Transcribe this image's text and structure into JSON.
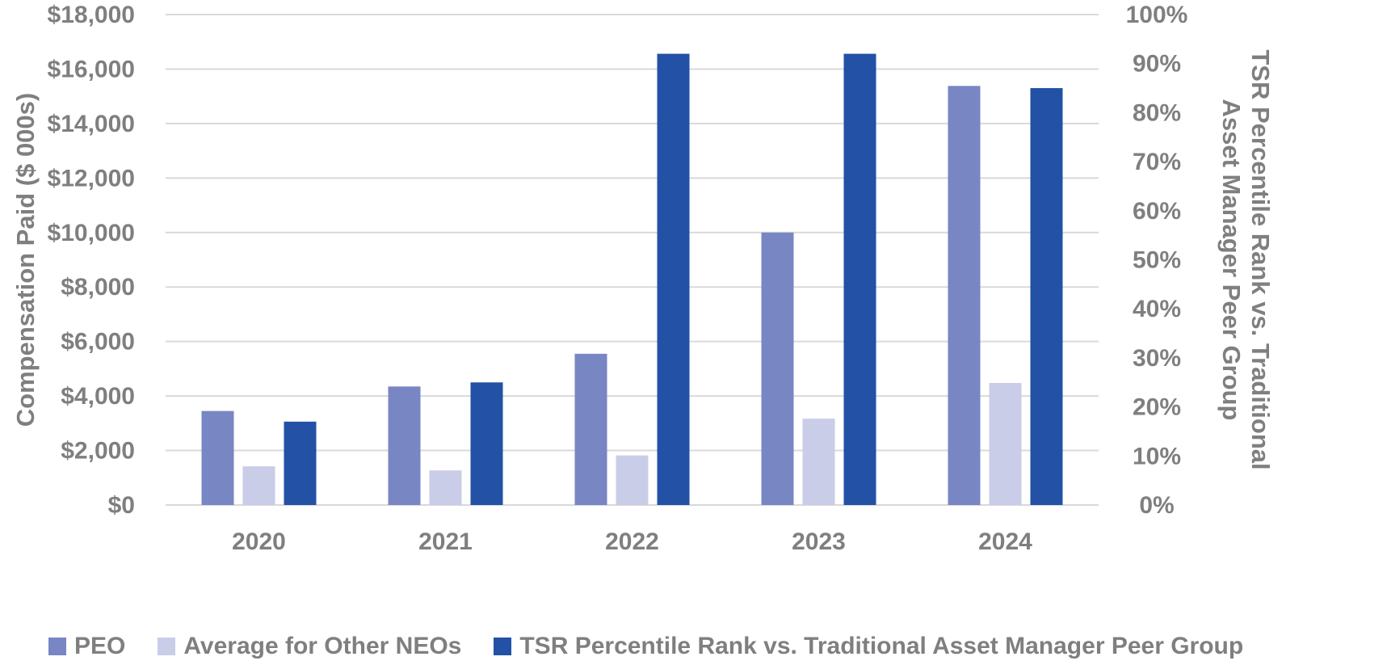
{
  "chart_data": {
    "type": "bar",
    "categories": [
      "2020",
      "2021",
      "2022",
      "2023",
      "2024"
    ],
    "series": [
      {
        "name": "PEO",
        "axis": "left",
        "color": "#7986c4",
        "values": [
          3450,
          4350,
          5550,
          10000,
          15380
        ]
      },
      {
        "name": "Average for Other NEOs",
        "axis": "left",
        "color": "#c9cde8",
        "values": [
          1420,
          1270,
          1820,
          3170,
          4480
        ]
      },
      {
        "name": "TSR Percentile Rank vs. Traditional Asset Manager Peer Group",
        "axis": "right",
        "color": "#2251a5",
        "values": [
          17,
          25,
          92,
          92,
          85
        ]
      }
    ],
    "ylabel": "Compensation Paid ($ 000s)",
    "ylim": [
      0,
      18000
    ],
    "yticks": [
      "$0",
      "$2,000",
      "$4,000",
      "$6,000",
      "$8,000",
      "$10,000",
      "$12,000",
      "$14,000",
      "$16,000",
      "$18,000"
    ],
    "y2label": "TSR Percentile Rank vs. Traditional Asset Manager Peer Group",
    "y2label_lines": [
      "TSR Percentile Rank vs. Traditional",
      "Asset Manager Peer Group"
    ],
    "y2lim": [
      0,
      100
    ],
    "y2ticks": [
      "0%",
      "10%",
      "20%",
      "30%",
      "40%",
      "50%",
      "60%",
      "70%",
      "80%",
      "90%",
      "100%"
    ],
    "grid": true,
    "legend_position": "bottom",
    "gridline_color": "#d9d9d9",
    "text_color": "#7f7f7f"
  }
}
